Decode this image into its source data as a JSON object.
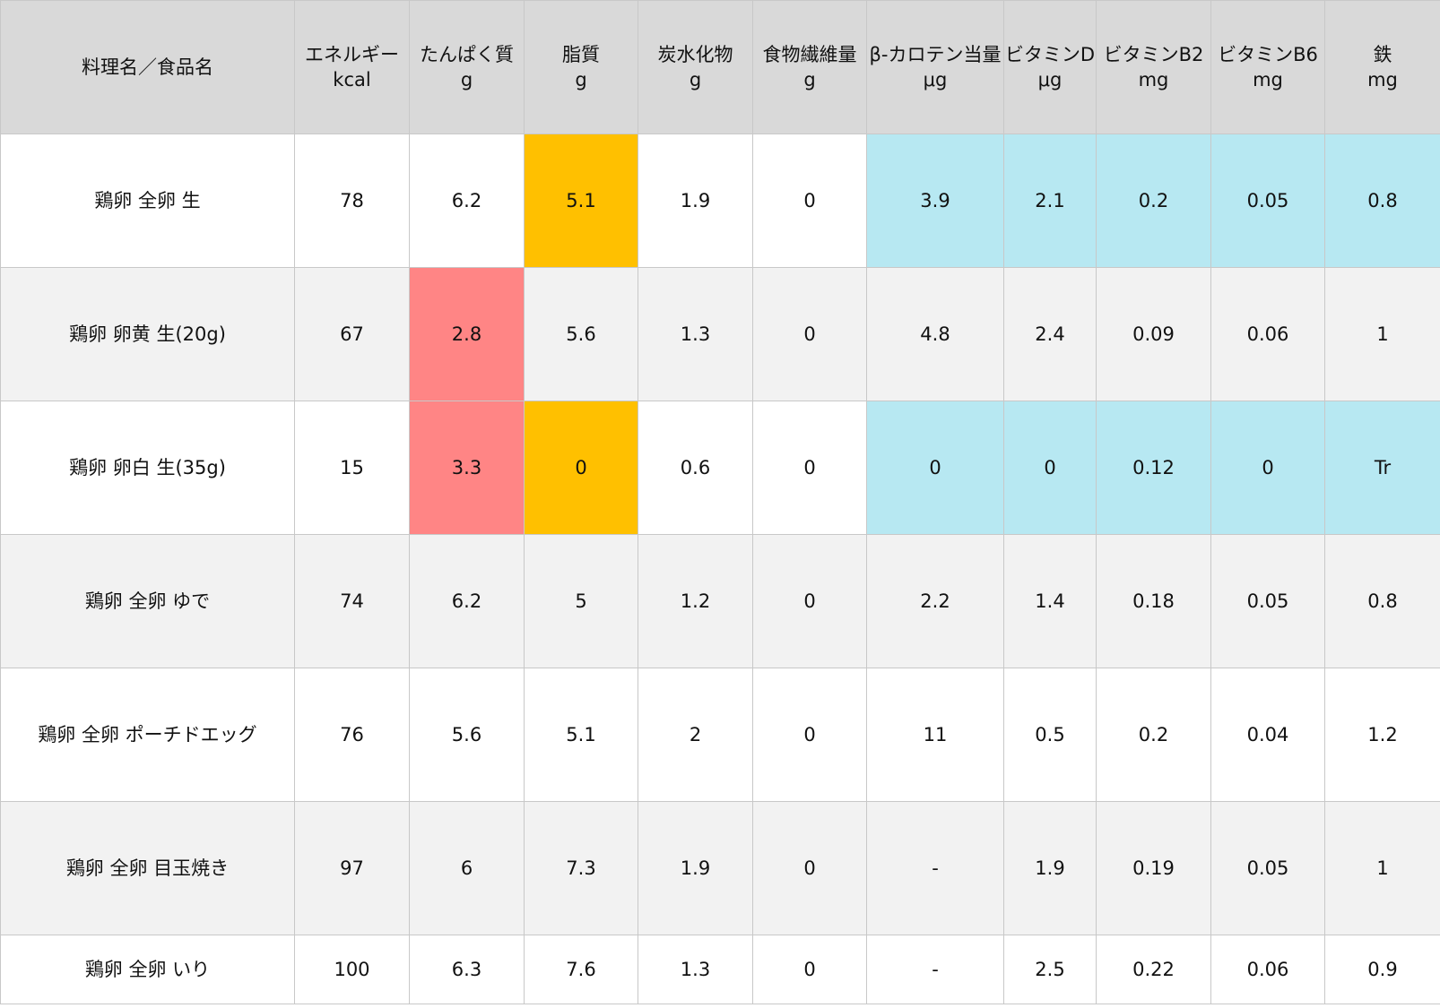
{
  "colors": {
    "header": "#d9d9d9",
    "alt_row": "#f2f2f2",
    "orange": "#ffc000",
    "red": "#ff8585",
    "cyan": "#b7e8f2"
  },
  "headers": [
    {
      "name": "料理名／食品名",
      "unit": ""
    },
    {
      "name": "エネルギー",
      "unit": "kcal"
    },
    {
      "name": "たんぱく質",
      "unit": "g"
    },
    {
      "name": "脂質",
      "unit": "g"
    },
    {
      "name": "炭水化物",
      "unit": "g"
    },
    {
      "name": "食物繊維量",
      "unit": "g"
    },
    {
      "name": "β-カロテン当量",
      "unit": "μg"
    },
    {
      "name": "ビタミンD",
      "unit": "μg"
    },
    {
      "name": "ビタミンB2",
      "unit": "mg"
    },
    {
      "name": "ビタミンB6",
      "unit": "mg"
    },
    {
      "name": "鉄",
      "unit": "mg"
    }
  ],
  "rows": [
    {
      "cells": [
        "鶏卵 全卵 生",
        "78",
        "6.2",
        "5.1",
        "1.9",
        "0",
        "3.9",
        "2.1",
        "0.2",
        "0.05",
        "0.8"
      ],
      "highlight": [
        "",
        "",
        "",
        "orange",
        "",
        "",
        "cyan",
        "cyan",
        "cyan",
        "cyan",
        "cyan"
      ]
    },
    {
      "cells": [
        "鶏卵 卵黄 生(20g)",
        "67",
        "2.8",
        "5.6",
        "1.3",
        "0",
        "4.8",
        "2.4",
        "0.09",
        "0.06",
        "1"
      ],
      "highlight": [
        "",
        "",
        "red",
        "",
        "",
        "",
        "",
        "",
        "",
        "",
        ""
      ]
    },
    {
      "cells": [
        "鶏卵 卵白 生(35g)",
        "15",
        "3.3",
        "0",
        "0.6",
        "0",
        "0",
        "0",
        "0.12",
        "0",
        "Tr"
      ],
      "highlight": [
        "",
        "",
        "red",
        "orange",
        "",
        "",
        "cyan",
        "cyan",
        "cyan",
        "cyan",
        "cyan"
      ]
    },
    {
      "cells": [
        "鶏卵 全卵 ゆで",
        "74",
        "6.2",
        "5",
        "1.2",
        "0",
        "2.2",
        "1.4",
        "0.18",
        "0.05",
        "0.8"
      ],
      "highlight": [
        "",
        "",
        "",
        "",
        "",
        "",
        "",
        "",
        "",
        "",
        ""
      ]
    },
    {
      "cells": [
        "鶏卵 全卵 ポーチドエッグ",
        "76",
        "5.6",
        "5.1",
        "2",
        "0",
        "11",
        "0.5",
        "0.2",
        "0.04",
        "1.2"
      ],
      "highlight": [
        "",
        "",
        "",
        "",
        "",
        "",
        "",
        "",
        "",
        "",
        ""
      ]
    },
    {
      "cells": [
        "鶏卵 全卵 目玉焼き",
        "97",
        "6",
        "7.3",
        "1.9",
        "0",
        "-",
        "1.9",
        "0.19",
        "0.05",
        "1"
      ],
      "highlight": [
        "",
        "",
        "",
        "",
        "",
        "",
        "",
        "",
        "",
        "",
        ""
      ]
    },
    {
      "cells": [
        "鶏卵 全卵 いり",
        "100",
        "6.3",
        "7.6",
        "1.3",
        "0",
        "-",
        "2.5",
        "0.22",
        "0.06",
        "0.9"
      ],
      "highlight": [
        "",
        "",
        "",
        "",
        "",
        "",
        "",
        "",
        "",
        "",
        ""
      ]
    }
  ]
}
